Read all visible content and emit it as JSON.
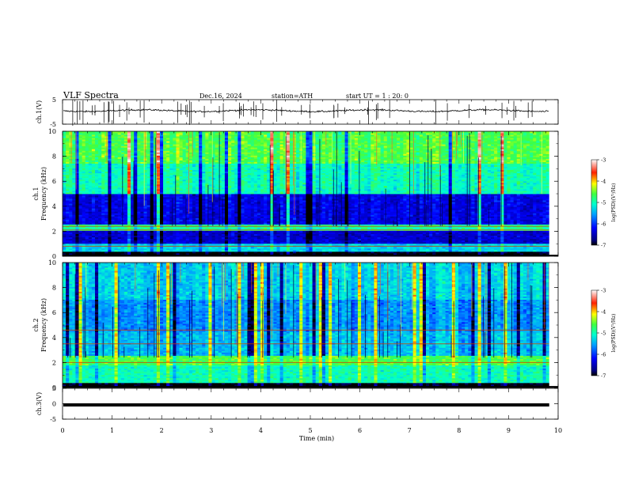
{
  "header": {
    "title": "VLF  Spectra",
    "date": "Dec.16, 2024",
    "station": "station=ATH",
    "start": "start  UT  =   1 : 20: 0"
  },
  "chart_data": [
    {
      "type": "line",
      "panel": "ch1-waveform",
      "ylabel": "ch.1(V)",
      "ylim": [
        -5,
        5
      ],
      "yticks": [
        "5",
        "-5"
      ],
      "series": [
        {
          "trace_color": "#000000",
          "baseline": 0.5,
          "noise_amplitude": 0.6
        }
      ]
    },
    {
      "type": "heatmap",
      "panel": "ch1-spectrogram",
      "ylabel_line1": "ch.1",
      "ylabel_line2": "Frequency  (kHz)",
      "ylim": [
        0,
        10
      ],
      "yticks": [
        "0",
        "2",
        "4",
        "6",
        "8",
        "10"
      ],
      "xlim": [
        0,
        10
      ],
      "colorbar": {
        "label": "log(PSD)(V²/Hz)",
        "ticks": [
          "-3",
          "-4",
          "-5",
          "-6",
          "-7"
        ],
        "range": [
          -7,
          -3
        ]
      },
      "bands_khz": [
        {
          "from": 0,
          "to": 0.35,
          "level": -7
        },
        {
          "from": 0.35,
          "to": 1.0,
          "level": -5.3
        },
        {
          "from": 1.0,
          "to": 2.0,
          "level": -6.4
        },
        {
          "from": 2.0,
          "to": 2.6,
          "level": -4.9
        },
        {
          "from": 2.6,
          "to": 5.0,
          "level": -6.3
        },
        {
          "from": 5.0,
          "to": 7.5,
          "level": -5.0
        },
        {
          "from": 7.5,
          "to": 10.0,
          "level": -4.6
        }
      ],
      "lines_khz": [
        0.8,
        2.1,
        2.4
      ]
    },
    {
      "type": "heatmap",
      "panel": "ch2-spectrogram",
      "ylabel_line1": "ch.2",
      "ylabel_line2": "Frequency  (kHz)",
      "ylim": [
        0,
        10
      ],
      "yticks": [
        "0",
        "2",
        "4",
        "6",
        "8",
        "10"
      ],
      "xlim": [
        0,
        10
      ],
      "colorbar": {
        "label": "log(PSD)(V²/Hz)",
        "ticks": [
          "-3",
          "-4",
          "-5",
          "-6",
          "-7"
        ],
        "range": [
          -7,
          -3
        ]
      },
      "bands_khz": [
        {
          "from": 0,
          "to": 0.35,
          "level": -7
        },
        {
          "from": 0.35,
          "to": 1.8,
          "level": -5.0
        },
        {
          "from": 1.8,
          "to": 2.6,
          "level": -4.6
        },
        {
          "from": 2.6,
          "to": 4.5,
          "level": -5.4
        },
        {
          "from": 4.5,
          "to": 7.0,
          "level": -5.6
        },
        {
          "from": 7.0,
          "to": 10.0,
          "level": -5.3
        }
      ],
      "lines_khz": [
        2.0,
        3.5,
        4.6
      ]
    },
    {
      "type": "line",
      "panel": "ch3-waveform",
      "ylabel": "ch.3(V)",
      "ylim": [
        -5,
        5
      ],
      "yticks": [
        "5",
        "0",
        "-5"
      ],
      "series": [
        {
          "trace_color": "#000000",
          "constant_value": 0.0
        }
      ]
    }
  ],
  "xaxis": {
    "xlabel": "Time  (min)",
    "xlim": [
      0,
      10
    ],
    "ticks": [
      "0",
      "1",
      "2",
      "3",
      "4",
      "5",
      "6",
      "7",
      "8",
      "9",
      "10"
    ],
    "data_end": 9.82
  }
}
